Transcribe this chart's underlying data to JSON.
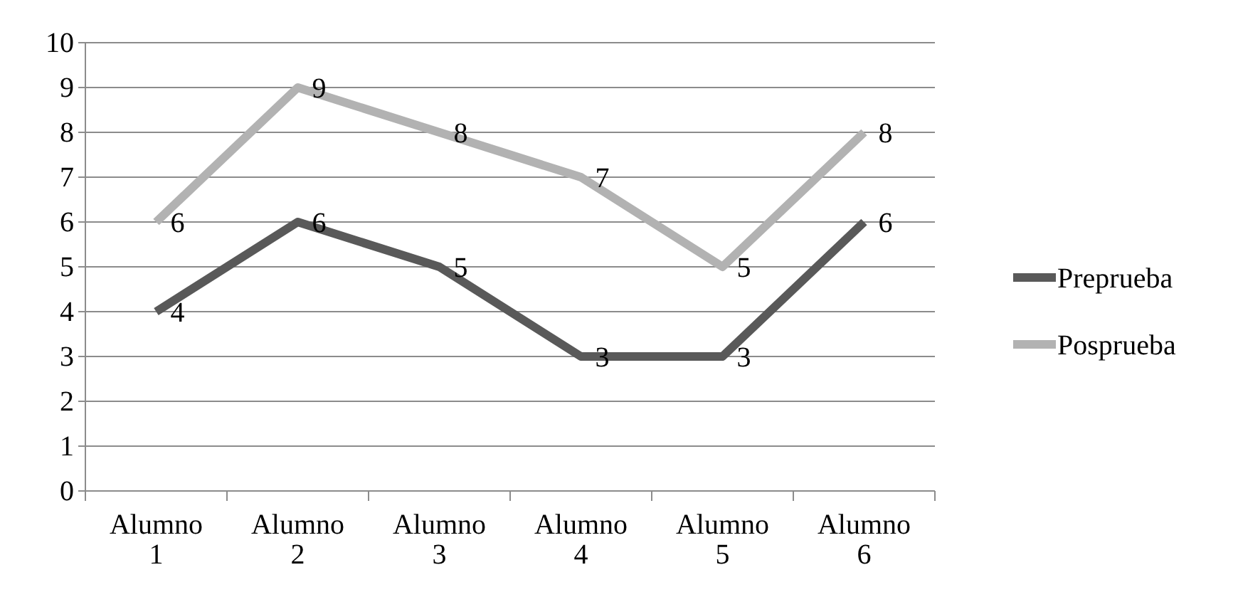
{
  "chart_data": {
    "type": "line",
    "categories": [
      "Alumno 1",
      "Alumno 2",
      "Alumno 3",
      "Alumno 4",
      "Alumno 5",
      "Alumno 6"
    ],
    "series": [
      {
        "name": "Preprueba",
        "color": "#595959",
        "values": [
          4,
          6,
          5,
          3,
          3,
          6
        ]
      },
      {
        "name": "Posprueba",
        "color": "#b2b2b2",
        "values": [
          6,
          9,
          8,
          7,
          5,
          8
        ]
      }
    ],
    "ylim": [
      0,
      10
    ],
    "yticks": [
      0,
      1,
      2,
      3,
      4,
      5,
      6,
      7,
      8,
      9,
      10
    ],
    "grid": "y",
    "legend": "right",
    "data_labels": true,
    "marker": "none",
    "line_style": "solid"
  }
}
